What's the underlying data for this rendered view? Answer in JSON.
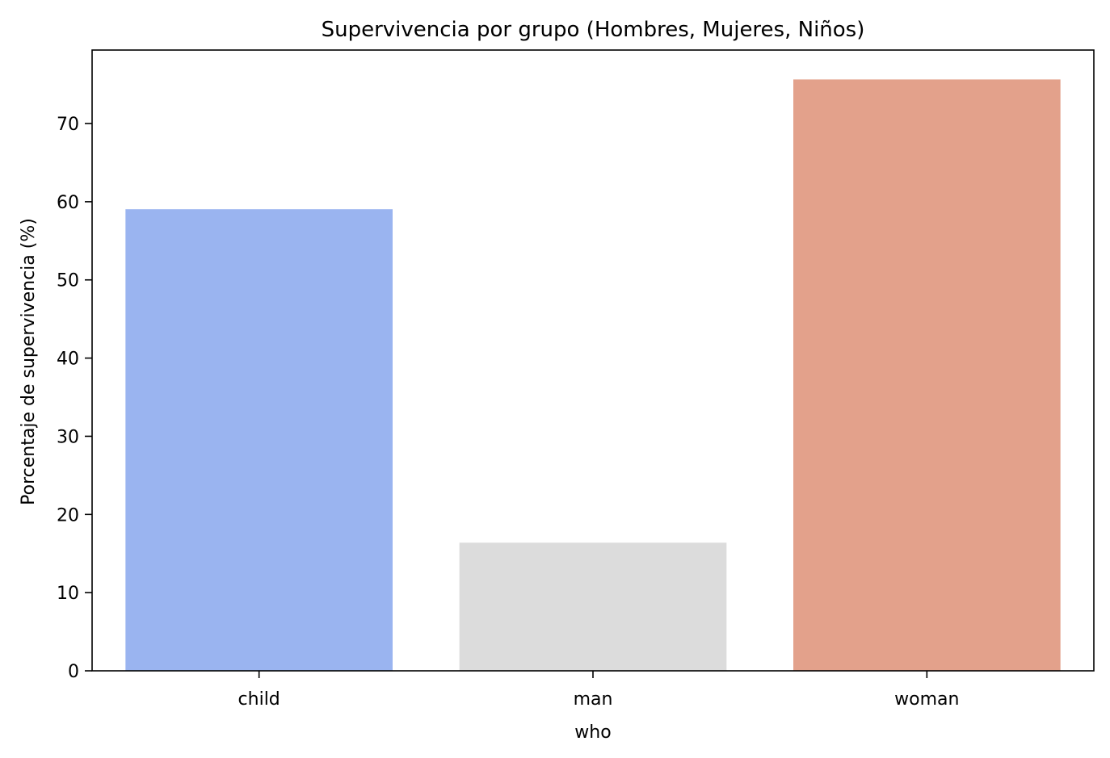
{
  "chart_data": {
    "type": "bar",
    "title": "Supervivencia por grupo (Hombres, Mujeres, Niños)",
    "xlabel": "who",
    "ylabel": "Porcentaje de supervivencia (%)",
    "categories": [
      "child",
      "man",
      "woman"
    ],
    "values": [
      59.04,
      16.39,
      75.64
    ],
    "colors": [
      "#9ab4f0",
      "#dcdcdc",
      "#e3a18b"
    ],
    "ylim": [
      0,
      79.4
    ],
    "yticks": [
      0,
      10,
      20,
      30,
      40,
      50,
      60,
      70
    ],
    "grid": false,
    "legend": "none"
  }
}
